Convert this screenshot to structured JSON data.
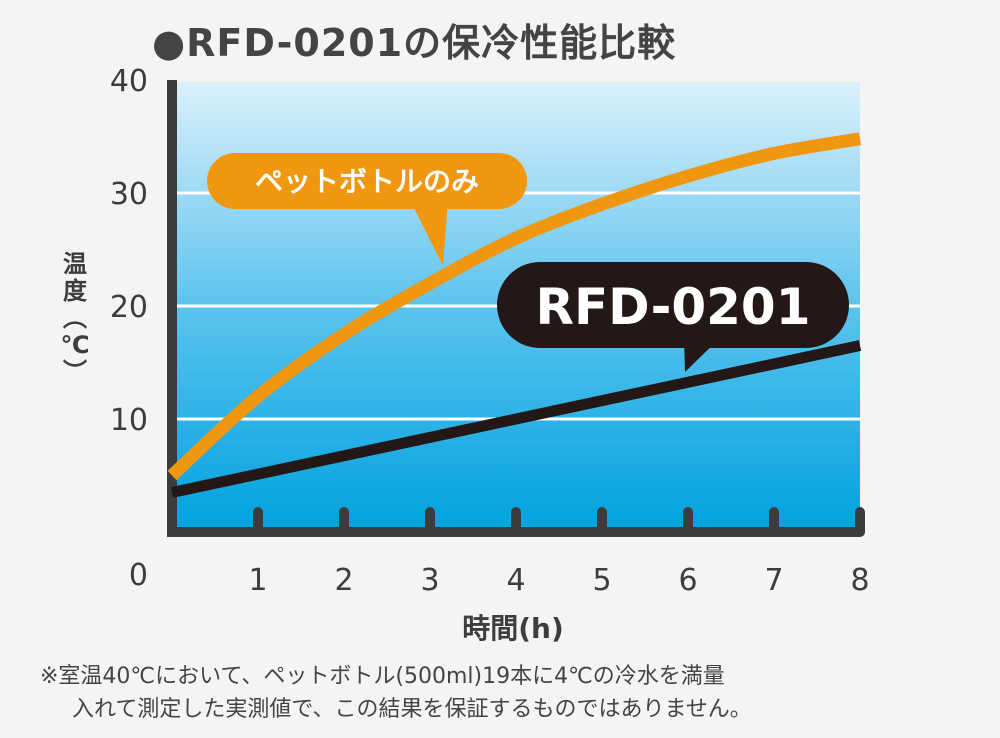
{
  "chart_data": {
    "type": "line",
    "title": "●RFD-0201の保冷性能比較",
    "xlabel": "時間(h)",
    "ylabel": "温度(℃)",
    "xlim": [
      0,
      8
    ],
    "ylim": [
      0,
      40
    ],
    "x_ticks": [
      "1",
      "2",
      "3",
      "4",
      "5",
      "6",
      "7",
      "8"
    ],
    "y_ticks": [
      "0",
      "10",
      "20",
      "30",
      "40"
    ],
    "grid": true,
    "series": [
      {
        "name": "ペットボトルのみ",
        "color": "#f0960f",
        "x": [
          0,
          1,
          2,
          3,
          4,
          5,
          6,
          7,
          8
        ],
        "y": [
          5,
          12,
          17.5,
          22,
          26,
          29,
          31.5,
          33.5,
          34.8
        ]
      },
      {
        "name": "RFD-0201",
        "color": "#231815",
        "x": [
          0,
          8
        ],
        "y": [
          3.5,
          16.5
        ]
      }
    ]
  },
  "colors": {
    "background_top": "#dcf0fb",
    "background_bottom": "#00a2df",
    "axis": "#3c3c3c",
    "gridline": "#ffffff",
    "callout_orange": "#f0960f",
    "callout_black": "#231815"
  },
  "footnote": {
    "line1": "※室温40℃において、ペットボトル(500ml)19本に4℃の冷水を満量",
    "line2": "入れて測定した実測値で、この結果を保証するものではありません。"
  }
}
